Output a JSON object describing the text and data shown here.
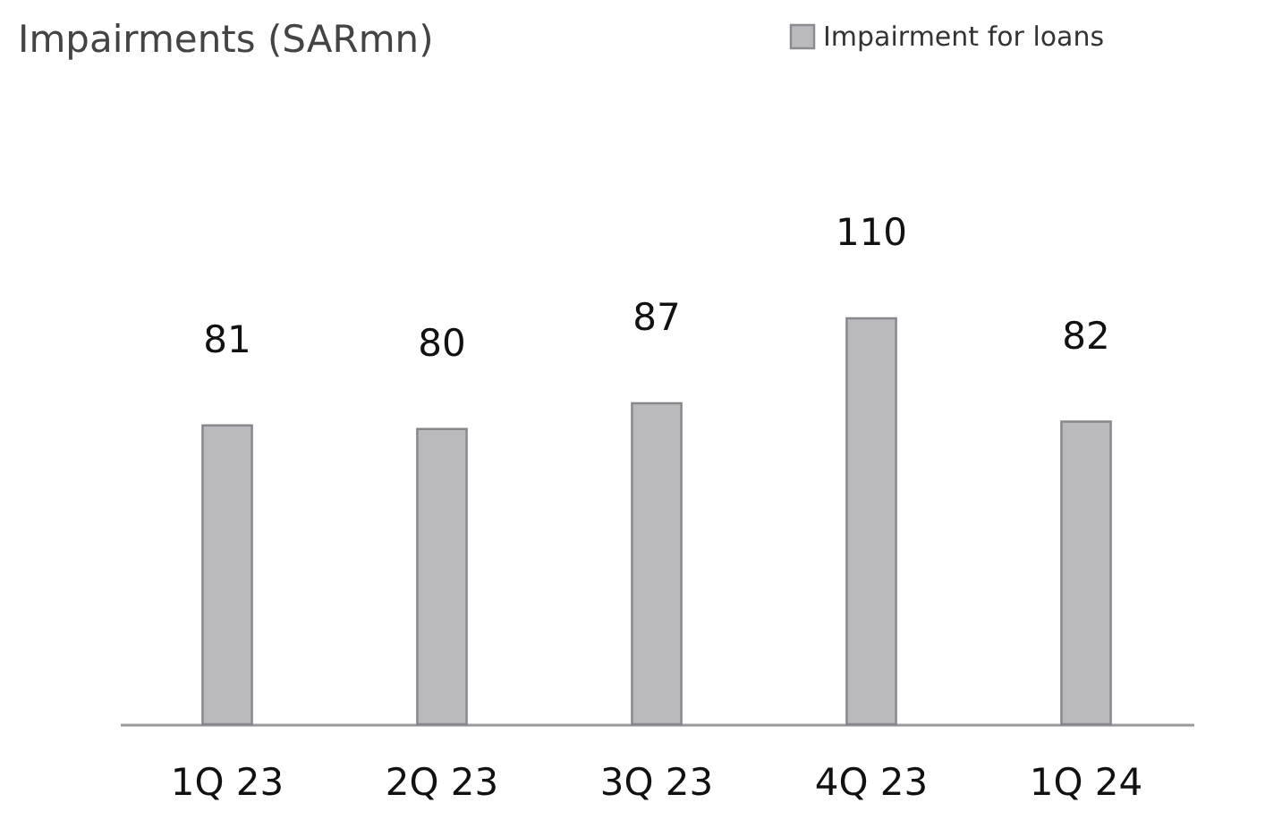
{
  "chart_data": {
    "type": "bar",
    "title": "Impairments (SARmn)",
    "categories": [
      "1Q 23",
      "2Q 23",
      "3Q 23",
      "4Q 23",
      "1Q 24"
    ],
    "series": [
      {
        "name": "Impairment for loans",
        "color": "#b9b9be",
        "values": [
          81,
          80,
          87,
          110,
          82
        ]
      }
    ],
    "data_labels": true,
    "legend": "top right"
  }
}
